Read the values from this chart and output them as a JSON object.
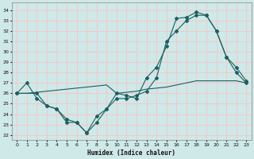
{
  "xlabel": "Humidex (Indice chaleur)",
  "background_color": "#cfe8e8",
  "grid_color": "#f5c8c8",
  "line_color": "#1a6060",
  "xlim": [
    -0.5,
    23.5
  ],
  "ylim": [
    21.5,
    34.7
  ],
  "yticks": [
    22,
    23,
    24,
    25,
    26,
    27,
    28,
    29,
    30,
    31,
    32,
    33,
    34
  ],
  "xticks": [
    0,
    1,
    2,
    3,
    4,
    5,
    6,
    7,
    8,
    9,
    10,
    11,
    12,
    13,
    14,
    15,
    16,
    17,
    18,
    19,
    20,
    21,
    22,
    23
  ],
  "line1_x": [
    0,
    1,
    2,
    3,
    4,
    5,
    6,
    7,
    8,
    9,
    10,
    11,
    12,
    13,
    14,
    15,
    16,
    17,
    18,
    19,
    20,
    21,
    22,
    23
  ],
  "line1_y": [
    26.0,
    27.0,
    25.5,
    24.8,
    24.5,
    23.2,
    23.2,
    22.2,
    23.2,
    24.5,
    26.0,
    25.8,
    25.5,
    27.5,
    28.5,
    30.5,
    33.2,
    33.3,
    33.8,
    33.5,
    32.0,
    29.5,
    28.0,
    27.0
  ],
  "line2_x": [
    0,
    2,
    3,
    4,
    5,
    6,
    7,
    8,
    9,
    10,
    11,
    12,
    13,
    14,
    15,
    16,
    17,
    18,
    19,
    20,
    21,
    22,
    23
  ],
  "line2_y": [
    26.0,
    26.0,
    24.8,
    24.5,
    23.5,
    23.2,
    22.2,
    23.8,
    24.5,
    25.5,
    25.5,
    25.8,
    26.2,
    27.5,
    31.0,
    32.0,
    33.0,
    33.5,
    33.5,
    32.0,
    29.5,
    28.5,
    27.2
  ],
  "line3_x": [
    0,
    1,
    2,
    3,
    4,
    5,
    6,
    7,
    8,
    9,
    10,
    11,
    12,
    13,
    14,
    15,
    16,
    17,
    18,
    19,
    20,
    21,
    22,
    23
  ],
  "line3_y": [
    26.0,
    26.0,
    26.1,
    26.2,
    26.3,
    26.4,
    26.5,
    26.6,
    26.7,
    26.8,
    26.0,
    26.1,
    26.2,
    26.4,
    26.5,
    26.6,
    26.8,
    27.0,
    27.2,
    27.2,
    27.2,
    27.2,
    27.2,
    27.0
  ]
}
